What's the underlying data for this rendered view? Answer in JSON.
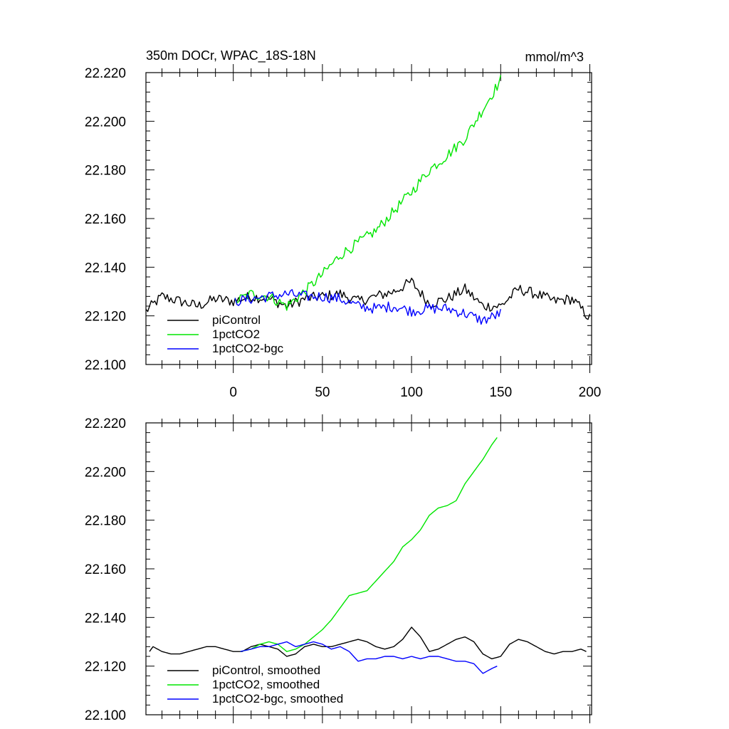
{
  "title": "350m DOCr, WPAC_18S-18N",
  "units": "mmol/m^3",
  "colors": {
    "piControl": "#000000",
    "1pctCO2": "#00e600",
    "1pctCO2-bgc": "#0000ff"
  },
  "chart_data": [
    {
      "type": "line",
      "panel": "top",
      "xlim": [
        -49,
        201
      ],
      "ylim": [
        22.1,
        22.22
      ],
      "x_ticks": [
        0,
        50,
        100,
        150,
        200
      ],
      "x_tick_labels": [
        "0",
        "50",
        "100",
        "150",
        "200"
      ],
      "y_ticks": [
        22.1,
        22.12,
        22.14,
        22.16,
        22.18,
        22.2,
        22.22
      ],
      "y_tick_labels": [
        "22.100",
        "22.120",
        "22.140",
        "22.160",
        "22.180",
        "22.200",
        "22.220"
      ],
      "legend_position": "bottom-left",
      "series": [
        {
          "name": "piControl",
          "color": "#000000",
          "style": "noisy",
          "x": [
            -49,
            -40,
            -30,
            -20,
            -10,
            0,
            10,
            20,
            30,
            40,
            50,
            60,
            70,
            80,
            90,
            100,
            110,
            120,
            130,
            140,
            150,
            160,
            170,
            180,
            190,
            200
          ],
          "y": [
            22.122,
            22.128,
            22.126,
            22.124,
            22.127,
            22.126,
            22.128,
            22.127,
            22.124,
            22.127,
            22.128,
            22.129,
            22.126,
            22.128,
            22.13,
            22.134,
            22.125,
            22.127,
            22.131,
            22.124,
            22.124,
            22.131,
            22.129,
            22.126,
            22.127,
            22.119
          ]
        },
        {
          "name": "1pctCO2",
          "color": "#00e600",
          "style": "noisy",
          "x": [
            1,
            10,
            20,
            30,
            40,
            50,
            60,
            70,
            80,
            90,
            100,
            110,
            120,
            130,
            140,
            150
          ],
          "y": [
            22.126,
            22.129,
            22.128,
            22.124,
            22.13,
            22.137,
            22.145,
            22.15,
            22.155,
            22.163,
            22.171,
            22.18,
            22.186,
            22.193,
            22.205,
            22.217
          ]
        },
        {
          "name": "1pctCO2-bgc",
          "color": "#0000ff",
          "style": "noisy",
          "x": [
            1,
            10,
            20,
            30,
            40,
            50,
            60,
            70,
            80,
            90,
            100,
            110,
            120,
            130,
            140,
            150
          ],
          "y": [
            22.126,
            22.127,
            22.128,
            22.129,
            22.128,
            22.128,
            22.127,
            22.124,
            22.123,
            22.124,
            22.122,
            22.123,
            22.123,
            22.121,
            22.118,
            22.121
          ]
        }
      ]
    },
    {
      "type": "line",
      "panel": "bottom",
      "xlim": [
        -49,
        201
      ],
      "ylim": [
        22.1,
        22.22
      ],
      "x_ticks": [
        0,
        50,
        100,
        150,
        200
      ],
      "x_tick_labels": [],
      "y_ticks": [
        22.1,
        22.12,
        22.14,
        22.16,
        22.18,
        22.2,
        22.22
      ],
      "y_tick_labels": [
        "22.100",
        "22.120",
        "22.140",
        "22.160",
        "22.180",
        "22.200",
        "22.220"
      ],
      "legend_position": "bottom-left",
      "series": [
        {
          "name": "piControl, smoothed",
          "color": "#000000",
          "style": "smooth",
          "x": [
            -47,
            -45,
            -40,
            -35,
            -30,
            -25,
            -20,
            -15,
            -10,
            -5,
            0,
            5,
            10,
            15,
            20,
            25,
            30,
            35,
            40,
            45,
            50,
            55,
            60,
            65,
            70,
            75,
            80,
            85,
            90,
            95,
            100,
            105,
            110,
            115,
            120,
            125,
            130,
            135,
            140,
            145,
            150,
            155,
            160,
            165,
            170,
            175,
            180,
            185,
            190,
            195,
            198
          ],
          "y": [
            22.126,
            22.128,
            22.126,
            22.125,
            22.125,
            22.126,
            22.127,
            22.128,
            22.128,
            22.127,
            22.126,
            22.126,
            22.128,
            22.129,
            22.128,
            22.127,
            22.124,
            22.125,
            22.128,
            22.129,
            22.128,
            22.128,
            22.129,
            22.13,
            22.131,
            22.13,
            22.128,
            22.127,
            22.128,
            22.131,
            22.136,
            22.132,
            22.126,
            22.127,
            22.129,
            22.131,
            22.132,
            22.13,
            22.125,
            22.123,
            22.124,
            22.129,
            22.131,
            22.13,
            22.128,
            22.126,
            22.125,
            22.126,
            22.126,
            22.127,
            22.126
          ]
        },
        {
          "name": "1pctCO2, smoothed",
          "color": "#00e600",
          "style": "smooth",
          "x": [
            4,
            10,
            15,
            20,
            25,
            30,
            35,
            40,
            45,
            50,
            55,
            60,
            65,
            70,
            75,
            80,
            85,
            90,
            95,
            100,
            105,
            110,
            115,
            120,
            125,
            130,
            135,
            140,
            145,
            148
          ],
          "y": [
            22.126,
            22.127,
            22.129,
            22.13,
            22.129,
            22.126,
            22.127,
            22.129,
            22.132,
            22.135,
            22.139,
            22.144,
            22.149,
            22.15,
            22.151,
            22.155,
            22.159,
            22.163,
            22.169,
            22.172,
            22.176,
            22.182,
            22.185,
            22.186,
            22.188,
            22.195,
            22.2,
            22.205,
            22.211,
            22.214
          ]
        },
        {
          "name": "1pctCO2-bgc, smoothed",
          "color": "#0000ff",
          "style": "smooth",
          "x": [
            4,
            10,
            15,
            20,
            25,
            30,
            35,
            40,
            45,
            50,
            55,
            60,
            65,
            70,
            75,
            80,
            85,
            90,
            95,
            100,
            105,
            110,
            115,
            120,
            125,
            130,
            135,
            140,
            145,
            148
          ],
          "y": [
            22.126,
            22.127,
            22.128,
            22.128,
            22.129,
            22.13,
            22.128,
            22.129,
            22.13,
            22.129,
            22.127,
            22.128,
            22.126,
            22.122,
            22.123,
            22.123,
            22.124,
            22.124,
            22.123,
            22.124,
            22.123,
            22.124,
            22.124,
            22.123,
            22.122,
            22.122,
            22.121,
            22.117,
            22.119,
            22.12
          ]
        }
      ]
    }
  ]
}
